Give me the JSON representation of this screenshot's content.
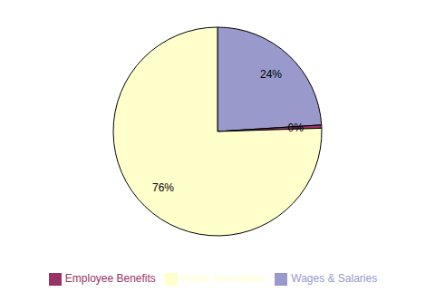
{
  "chart_data": {
    "type": "pie",
    "categories": [
      "Wages & Salaries",
      "Employee Benefits",
      "Public Assistance"
    ],
    "values": [
      24,
      0.5,
      75.5
    ],
    "value_labels": [
      "24%",
      "0%",
      "76%"
    ],
    "colors": [
      "#9999CC",
      "#993366",
      "#FFFFCC"
    ],
    "data_labels": true,
    "legend": "bottom"
  }
}
